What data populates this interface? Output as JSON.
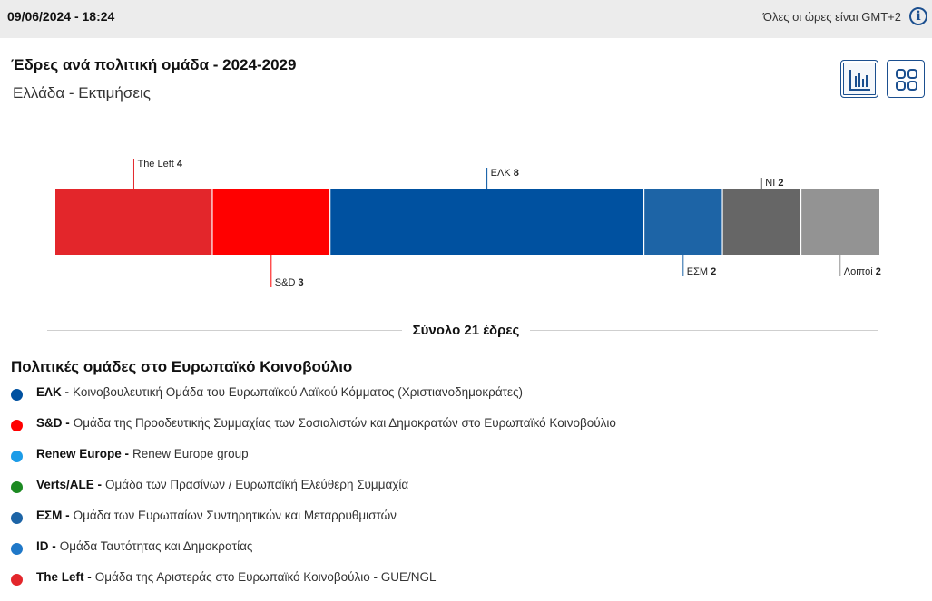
{
  "topbar": {
    "datetime": "09/06/2024 - 18:24",
    "timezone_note": "Όλες οι ώρες είναι GMT+2",
    "info_icon": "info-icon"
  },
  "header": {
    "title": "Έδρες ανά πολιτική ομάδα - 2024-2029",
    "subtitle": "Ελλάδα - Εκτιμήσεις"
  },
  "view_buttons": [
    {
      "icon": "bar-chart-icon",
      "active": true
    },
    {
      "icon": "grid-icon",
      "active": false
    }
  ],
  "chart_data": {
    "type": "bar",
    "orientation": "horizontal-stacked",
    "segments": [
      {
        "name": "The Left",
        "value": 4,
        "color": "#e3262b",
        "label_side": "top"
      },
      {
        "name": "S&D",
        "value": 3,
        "color": "#ff0000",
        "label_side": "bottom"
      },
      {
        "name": "ΕΛΚ",
        "value": 8,
        "color": "#0051a0",
        "label_side": "top"
      },
      {
        "name": "ΕΣΜ",
        "value": 2,
        "color": "#1d64a6",
        "label_side": "bottom"
      },
      {
        "name": "NI",
        "value": 2,
        "color": "#666666",
        "label_side": "top"
      },
      {
        "name": "Λοιποί",
        "value": 2,
        "color": "#939393",
        "label_side": "bottom"
      }
    ],
    "total_label": "Σύνολο 21 έδρες"
  },
  "legend": {
    "title": "Πολιτικές ομάδες στο Ευρωπαϊκό Κοινοβούλιο",
    "items": [
      {
        "abbr": "ΕΛΚ -",
        "desc": "Κοινοβουλευτική Ομάδα του Ευρωπαϊκού Λαϊκού Κόμματος (Χριστιανοδημοκράτες)",
        "color": "#0051a0"
      },
      {
        "abbr": "S&D -",
        "desc": "Ομάδα της Προοδευτικής Συμμαχίας των Σοσιαλιστών και Δημοκρατών στο Ευρωπαϊκό Κοινοβούλιο",
        "color": "#ff0000"
      },
      {
        "abbr": "Renew Europe -",
        "desc": "Renew Europe group",
        "color": "#1c9ce8"
      },
      {
        "abbr": "Verts/ALE -",
        "desc": "Ομάδα των Πρασίνων / Ευρωπαϊκή Ελεύθερη Συμμαχία",
        "color": "#1c8a22"
      },
      {
        "abbr": "ΕΣΜ -",
        "desc": "Ομάδα των Ευρωπαίων Συντηρητικών και Μεταρρυθμιστών",
        "color": "#1d64a6"
      },
      {
        "abbr": "ID -",
        "desc": "Ομάδα Ταυτότητας και Δημοκρατίας",
        "color": "#1f78c8"
      },
      {
        "abbr": "The Left -",
        "desc": "Ομάδα της Αριστεράς στο Ευρωπαϊκό Κοινοβούλιο - GUE/NGL",
        "color": "#e3262b"
      }
    ]
  }
}
